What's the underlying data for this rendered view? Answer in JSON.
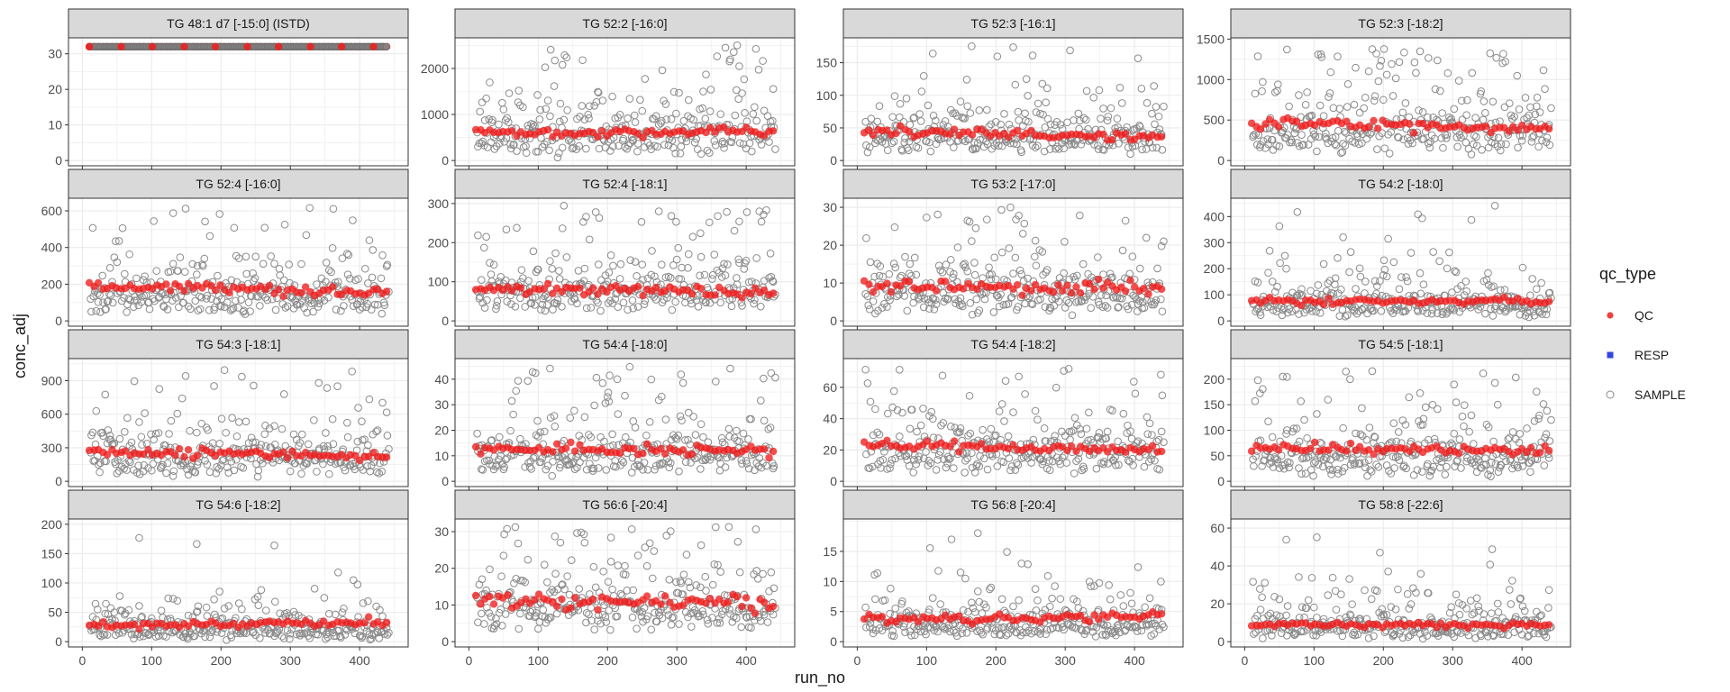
{
  "chart_data": {
    "type": "scatter",
    "facet": "wrap",
    "xlabel": "run_no",
    "ylabel": "conc_adj",
    "legend": {
      "title": "qc_type",
      "position": "right",
      "entries": [
        "QC",
        "RESP",
        "SAMPLE"
      ]
    },
    "colors": {
      "QC": "#f01c1c",
      "RESP": "#3347e0",
      "SAMPLE": "#8a8a8a",
      "strip": "#d9d9d9",
      "grid": "#ebebeb"
    },
    "xlim": [
      0,
      450
    ],
    "x_ticks": [
      "0",
      "100",
      "200",
      "300",
      "400"
    ],
    "panels": [
      {
        "title": "TG 48:1 d7 [-15:0] (ISTD)",
        "ylim": [
          0,
          33
        ],
        "y_ticks": [
          "0",
          "10",
          "20",
          "30"
        ],
        "qc_level": 32,
        "qc_noise": 0.0,
        "qc_trend": 0.0,
        "sample_median": null,
        "sample_spread": 0.0,
        "sample_max": null
      },
      {
        "title": "TG 52:2 [-16:0]",
        "ylim": [
          0,
          2550
        ],
        "y_ticks": [
          "0",
          "1000",
          "2000"
        ],
        "qc_level": 620,
        "qc_noise": 0.08,
        "qc_trend": 0.0,
        "sample_median": 600,
        "sample_spread": 0.55,
        "sample_max": 2550
      },
      {
        "title": "TG 52:3 [-16:1]",
        "ylim": [
          0,
          180
        ],
        "y_ticks": [
          "0",
          "50",
          "100",
          "150"
        ],
        "qc_level": 40,
        "qc_noise": 0.08,
        "qc_trend": -0.1,
        "sample_median": 40,
        "sample_spread": 0.5,
        "sample_max": 178
      },
      {
        "title": "TG 52:3 [-18:2]",
        "ylim": [
          0,
          1450
        ],
        "y_ticks": [
          "0",
          "500",
          "1000",
          "1500"
        ],
        "qc_level": 430,
        "qc_noise": 0.08,
        "qc_trend": -0.1,
        "sample_median": 380,
        "sample_spread": 0.55,
        "sample_max": 1430
      },
      {
        "title": "TG 52:4 [-16:0]",
        "ylim": [
          0,
          640
        ],
        "y_ticks": [
          "0",
          "200",
          "400",
          "600"
        ],
        "qc_level": 175,
        "qc_noise": 0.08,
        "qc_trend": -0.1,
        "sample_median": 150,
        "sample_spread": 0.55,
        "sample_max": 635
      },
      {
        "title": "TG 52:4 [-18:1]",
        "ylim": [
          0,
          300
        ],
        "y_ticks": [
          "0",
          "100",
          "200",
          "300"
        ],
        "qc_level": 78,
        "qc_noise": 0.08,
        "qc_trend": -0.05,
        "sample_median": 80,
        "sample_spread": 0.5,
        "sample_max": 295
      },
      {
        "title": "TG 53:2 [-17:0]",
        "ylim": [
          0,
          31
        ],
        "y_ticks": [
          "0",
          "10",
          "20",
          "30"
        ],
        "qc_level": 9,
        "qc_noise": 0.1,
        "qc_trend": -0.05,
        "sample_median": 8,
        "sample_spread": 0.55,
        "sample_max": 30.5
      },
      {
        "title": "TG 54:2 [-18:0]",
        "ylim": [
          0,
          450
        ],
        "y_ticks": [
          "0",
          "100",
          "200",
          "300",
          "400"
        ],
        "qc_level": 75,
        "qc_noise": 0.08,
        "qc_trend": 0.0,
        "sample_median": 70,
        "sample_spread": 0.6,
        "sample_max": 445
      },
      {
        "title": "TG 54:3 [-18:1]",
        "ylim": [
          0,
          1050
        ],
        "y_ticks": [
          "0",
          "300",
          "600",
          "900"
        ],
        "qc_level": 250,
        "qc_noise": 0.08,
        "qc_trend": -0.1,
        "sample_median": 230,
        "sample_spread": 0.55,
        "sample_max": 1040
      },
      {
        "title": "TG 54:4 [-18:0]",
        "ylim": [
          0,
          46
        ],
        "y_ticks": [
          "0",
          "10",
          "20",
          "30",
          "40"
        ],
        "qc_level": 12,
        "qc_noise": 0.08,
        "qc_trend": -0.05,
        "sample_median": 11,
        "sample_spread": 0.55,
        "sample_max": 45
      },
      {
        "title": "TG 54:4 [-18:2]",
        "ylim": [
          0,
          75
        ],
        "y_ticks": [
          "0",
          "20",
          "40",
          "60"
        ],
        "qc_level": 22,
        "qc_noise": 0.08,
        "qc_trend": -0.1,
        "sample_median": 20,
        "sample_spread": 0.5,
        "sample_max": 73
      },
      {
        "title": "TG 54:5 [-18:1]",
        "ylim": [
          0,
          230
        ],
        "y_ticks": [
          "0",
          "50",
          "100",
          "150",
          "200"
        ],
        "qc_level": 62,
        "qc_noise": 0.08,
        "qc_trend": -0.05,
        "sample_median": 50,
        "sample_spread": 0.55,
        "sample_max": 228
      },
      {
        "title": "TG 54:6 [-18:2]",
        "ylim": [
          0,
          200
        ],
        "y_ticks": [
          "0",
          "50",
          "100",
          "150",
          "200"
        ],
        "qc_level": 30,
        "qc_noise": 0.1,
        "qc_trend": 0.1,
        "sample_median": 22,
        "sample_spread": 0.6,
        "sample_max": 195
      },
      {
        "title": "TG 56:6 [-20:4]",
        "ylim": [
          0,
          32
        ],
        "y_ticks": [
          "0",
          "10",
          "20",
          "30"
        ],
        "qc_level": 11,
        "qc_noise": 0.1,
        "qc_trend": -0.05,
        "sample_median": 10,
        "sample_spread": 0.45,
        "sample_max": 31.5
      },
      {
        "title": "TG 56:8 [-20:4]",
        "ylim": [
          0,
          19.5
        ],
        "y_ticks": [
          "0",
          "5",
          "10",
          "15"
        ],
        "qc_level": 4,
        "qc_noise": 0.1,
        "qc_trend": 0.05,
        "sample_median": 3,
        "sample_spread": 0.55,
        "sample_max": 19
      },
      {
        "title": "TG 58:8 [-22:6]",
        "ylim": [
          0,
          62
        ],
        "y_ticks": [
          "0",
          "20",
          "40",
          "60"
        ],
        "qc_level": 9,
        "qc_noise": 0.08,
        "qc_trend": 0.0,
        "sample_median": 8,
        "sample_spread": 0.6,
        "sample_max": 57
      }
    ]
  }
}
